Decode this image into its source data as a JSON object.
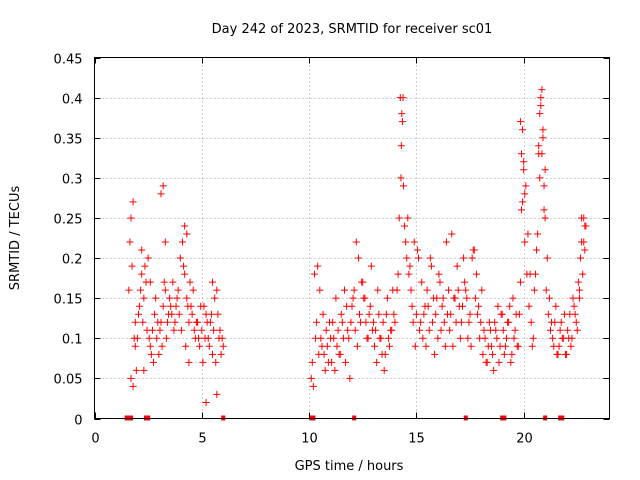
{
  "chart_data": {
    "type": "scatter",
    "title": "Day 242 of 2023, SRMTID for receiver sc01",
    "xlabel": "GPS time / hours",
    "ylabel": "SRMTID / TECUs",
    "xlim": [
      0,
      24
    ],
    "ylim": [
      0,
      0.45
    ],
    "xticks": [
      0,
      5,
      10,
      15,
      20
    ],
    "yticks": [
      0,
      0.05,
      0.1,
      0.15,
      0.2,
      0.25,
      0.3,
      0.35,
      0.4,
      0.45
    ],
    "xtick_labels": [
      "0",
      "5",
      "10",
      "15",
      "20"
    ],
    "ytick_labels": [
      "0",
      "0.05",
      "0.1",
      "0.15",
      "0.2",
      "0.25",
      "0.3",
      "0.35",
      "0.4",
      "0.45"
    ],
    "grid": true,
    "marker": "+",
    "color": "#ff0000",
    "series": [
      {
        "name": "sc01",
        "x": [
          1.6,
          1.7,
          1.8,
          1.9,
          2.0,
          2.1,
          2.2,
          2.3,
          2.4,
          2.5,
          2.6,
          2.7,
          2.8,
          2.9,
          3.0,
          3.1,
          3.2,
          3.3,
          3.4,
          3.5,
          3.6,
          3.7,
          3.8,
          3.9,
          4.0,
          4.1,
          4.2,
          4.3,
          4.4,
          4.5,
          4.6,
          4.7,
          4.8,
          4.9,
          5.0,
          5.1,
          5.2,
          5.3,
          5.4,
          5.5,
          5.6,
          5.7,
          5.8,
          5.9,
          6.0,
          1.65,
          1.75,
          1.85,
          1.95,
          2.05,
          2.15,
          2.25,
          2.35,
          2.45,
          2.55,
          2.65,
          2.75,
          2.85,
          2.95,
          3.05,
          3.15,
          3.25,
          3.35,
          3.45,
          3.55,
          3.65,
          3.75,
          3.85,
          3.95,
          4.05,
          4.15,
          4.25,
          4.35,
          4.45,
          4.55,
          4.65,
          4.75,
          4.85,
          4.95,
          5.05,
          5.15,
          5.25,
          5.35,
          5.45,
          5.55,
          5.65,
          5.75,
          5.85,
          5.95,
          1.7,
          1.8,
          1.9,
          2.3,
          2.6,
          3.1,
          3.2,
          4.2,
          4.3,
          4.4,
          5.5,
          5.7,
          5.2,
          3.3,
          2.2,
          10.1,
          10.2,
          10.3,
          10.4,
          10.5,
          10.6,
          10.7,
          10.8,
          10.9,
          11.0,
          11.1,
          11.2,
          11.3,
          11.4,
          11.5,
          11.6,
          11.7,
          11.8,
          11.9,
          12.0,
          12.1,
          12.2,
          12.3,
          12.4,
          12.5,
          12.6,
          12.7,
          12.8,
          12.9,
          13.0,
          13.1,
          13.2,
          13.3,
          13.4,
          13.5,
          13.6,
          13.7,
          13.8,
          13.9,
          14.0,
          10.15,
          10.25,
          10.35,
          10.45,
          10.55,
          10.65,
          10.75,
          10.85,
          10.95,
          11.05,
          11.15,
          11.25,
          11.35,
          11.45,
          11.55,
          11.65,
          11.75,
          11.85,
          11.95,
          12.05,
          12.15,
          12.25,
          12.35,
          12.45,
          12.55,
          12.65,
          12.75,
          12.85,
          12.95,
          13.05,
          13.15,
          13.25,
          13.35,
          13.45,
          13.55,
          13.65,
          13.75,
          13.85,
          13.95,
          14.1,
          14.2,
          14.25,
          14.3,
          14.35,
          14.4,
          14.5,
          14.6,
          14.7,
          14.8,
          14.9,
          15.0,
          15.1,
          15.2,
          15.3,
          15.4,
          15.5,
          15.6,
          15.7,
          15.8,
          15.9,
          16.0,
          16.1,
          16.2,
          16.3,
          16.4,
          16.5,
          16.6,
          16.7,
          16.8,
          16.9,
          17.0,
          17.1,
          17.2,
          17.3,
          17.4,
          17.5,
          17.6,
          17.7,
          17.8,
          17.9,
          14.15,
          14.28,
          14.32,
          14.38,
          14.45,
          14.55,
          14.65,
          14.75,
          14.85,
          14.95,
          15.05,
          15.15,
          15.25,
          15.35,
          15.45,
          15.55,
          15.65,
          15.75,
          15.85,
          15.95,
          16.05,
          16.15,
          16.25,
          16.35,
          16.45,
          16.55,
          16.65,
          16.75,
          16.85,
          16.95,
          17.05,
          17.15,
          17.25,
          17.35,
          17.45,
          17.55,
          17.65,
          17.75,
          17.85,
          17.95,
          18.0,
          18.1,
          18.2,
          18.3,
          18.4,
          18.5,
          18.6,
          18.7,
          18.8,
          18.9,
          19.0,
          19.1,
          19.2,
          19.3,
          19.4,
          19.5,
          19.6,
          19.7,
          19.8,
          19.9,
          20.0,
          20.1,
          20.2,
          20.3,
          20.4,
          20.5,
          20.6,
          20.7,
          20.8,
          20.9,
          21.0,
          21.1,
          21.2,
          21.3,
          21.4,
          21.5,
          21.6,
          21.7,
          21.8,
          21.9,
          22.0,
          22.1,
          22.2,
          22.3,
          22.4,
          22.5,
          22.6,
          22.7,
          22.8,
          22.9,
          18.05,
          18.15,
          18.25,
          18.35,
          18.45,
          18.55,
          18.65,
          18.75,
          18.85,
          18.95,
          19.05,
          19.15,
          19.25,
          19.35,
          19.45,
          19.55,
          19.65,
          19.75,
          19.85,
          19.95,
          20.05,
          20.15,
          20.25,
          20.35,
          20.45,
          20.55,
          20.65,
          20.75,
          20.85,
          20.95,
          21.05,
          21.15,
          21.25,
          21.35,
          21.45,
          21.55,
          21.65,
          21.75,
          21.85,
          21.95,
          22.05,
          22.15,
          22.25,
          22.35,
          22.45,
          22.55,
          22.65,
          22.75,
          22.85,
          19.85,
          19.9,
          19.95,
          20.0,
          20.05,
          20.7,
          20.75,
          20.8,
          20.85,
          20.9,
          20.95,
          21.0,
          22.6,
          22.7,
          22.8,
          22.85
        ],
        "y": [
          0.16,
          0.25,
          0.27,
          0.12,
          0.1,
          0.14,
          0.18,
          0.15,
          0.17,
          0.2,
          0.09,
          0.11,
          0.13,
          0.1,
          0.08,
          0.12,
          0.14,
          0.16,
          0.12,
          0.15,
          0.13,
          0.11,
          0.14,
          0.16,
          0.2,
          0.22,
          0.18,
          0.15,
          0.12,
          0.14,
          0.16,
          0.1,
          0.12,
          0.09,
          0.11,
          0.14,
          0.13,
          0.1,
          0.12,
          0.08,
          0.15,
          0.16,
          0.1,
          0.08,
          0.09,
          0.22,
          0.19,
          0.1,
          0.06,
          0.13,
          0.16,
          0.12,
          0.19,
          0.11,
          0.1,
          0.08,
          0.07,
          0.15,
          0.12,
          0.11,
          0.09,
          0.17,
          0.1,
          0.13,
          0.14,
          0.17,
          0.12,
          0.15,
          0.13,
          0.11,
          0.19,
          0.09,
          0.14,
          0.17,
          0.13,
          0.11,
          0.12,
          0.1,
          0.14,
          0.07,
          0.1,
          0.12,
          0.09,
          0.13,
          0.11,
          0.07,
          0.13,
          0.11,
          0.1,
          0.05,
          0.04,
          0.09,
          0.06,
          0.17,
          0.28,
          0.29,
          0.24,
          0.23,
          0.07,
          0.17,
          0.03,
          0.02,
          0.22,
          0.21,
          0.05,
          0.04,
          0.1,
          0.19,
          0.16,
          0.09,
          0.08,
          0.11,
          0.07,
          0.1,
          0.12,
          0.06,
          0.09,
          0.08,
          0.13,
          0.1,
          0.07,
          0.11,
          0.05,
          0.14,
          0.16,
          0.22,
          0.2,
          0.12,
          0.17,
          0.15,
          0.1,
          0.13,
          0.19,
          0.12,
          0.11,
          0.16,
          0.1,
          0.08,
          0.06,
          0.13,
          0.1,
          0.11,
          0.16,
          0.12,
          0.07,
          0.18,
          0.12,
          0.08,
          0.1,
          0.13,
          0.06,
          0.09,
          0.12,
          0.07,
          0.1,
          0.15,
          0.11,
          0.08,
          0.12,
          0.16,
          0.14,
          0.1,
          0.12,
          0.15,
          0.11,
          0.09,
          0.13,
          0.17,
          0.15,
          0.12,
          0.1,
          0.14,
          0.11,
          0.09,
          0.07,
          0.13,
          0.1,
          0.12,
          0.08,
          0.15,
          0.09,
          0.11,
          0.13,
          0.16,
          0.25,
          0.4,
          0.34,
          0.37,
          0.29,
          0.22,
          0.25,
          0.19,
          0.14,
          0.22,
          0.13,
          0.2,
          0.12,
          0.1,
          0.14,
          0.16,
          0.11,
          0.19,
          0.15,
          0.13,
          0.1,
          0.17,
          0.14,
          0.12,
          0.22,
          0.16,
          0.13,
          0.09,
          0.15,
          0.19,
          0.14,
          0.12,
          0.2,
          0.16,
          0.1,
          0.13,
          0.2,
          0.21,
          0.18,
          0.14,
          0.18,
          0.3,
          0.38,
          0.4,
          0.24,
          0.2,
          0.18,
          0.16,
          0.12,
          0.09,
          0.21,
          0.11,
          0.17,
          0.13,
          0.09,
          0.14,
          0.2,
          0.12,
          0.08,
          0.15,
          0.18,
          0.11,
          0.15,
          0.09,
          0.13,
          0.11,
          0.23,
          0.15,
          0.12,
          0.16,
          0.1,
          0.14,
          0.17,
          0.15,
          0.12,
          0.09,
          0.21,
          0.15,
          0.13,
          0.1,
          0.12,
          0.08,
          0.1,
          0.07,
          0.12,
          0.09,
          0.06,
          0.11,
          0.14,
          0.09,
          0.13,
          0.08,
          0.1,
          0.12,
          0.07,
          0.15,
          0.11,
          0.09,
          0.13,
          0.26,
          0.31,
          0.29,
          0.23,
          0.18,
          0.09,
          0.16,
          0.21,
          0.34,
          0.39,
          0.36,
          0.31,
          0.2,
          0.15,
          0.12,
          0.09,
          0.14,
          0.08,
          0.11,
          0.1,
          0.13,
          0.08,
          0.1,
          0.09,
          0.15,
          0.13,
          0.11,
          0.16,
          0.25,
          0.22,
          0.24,
          0.16,
          0.11,
          0.07,
          0.09,
          0.11,
          0.08,
          0.12,
          0.1,
          0.07,
          0.13,
          0.11,
          0.09,
          0.12,
          0.14,
          0.08,
          0.1,
          0.13,
          0.09,
          0.17,
          0.27,
          0.22,
          0.18,
          0.14,
          0.12,
          0.1,
          0.18,
          0.23,
          0.3,
          0.33,
          0.26,
          0.16,
          0.13,
          0.11,
          0.1,
          0.12,
          0.08,
          0.09,
          0.12,
          0.1,
          0.08,
          0.11,
          0.13,
          0.1,
          0.14,
          0.12,
          0.17,
          0.2,
          0.18,
          0.21,
          0.37,
          0.33,
          0.36,
          0.32,
          0.28,
          0.33,
          0.38,
          0.4,
          0.41,
          0.35,
          0.29,
          0.25,
          0.15,
          0.22,
          0.25,
          0.24
        ],
        "zeros_x": [
          1.5,
          1.55,
          1.6,
          1.7,
          2.4,
          2.5,
          6.0,
          10.1,
          10.15,
          10.2,
          12.1,
          17.3,
          19.0,
          19.05,
          19.1,
          21.0,
          21.7,
          21.75,
          21.8
        ]
      }
    ]
  }
}
